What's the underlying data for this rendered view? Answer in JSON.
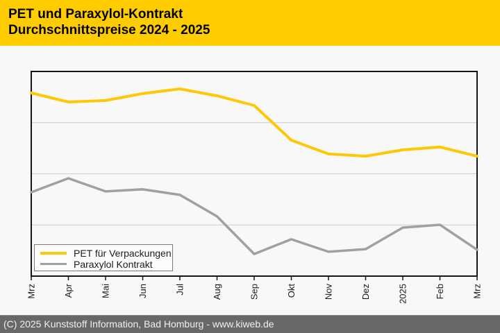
{
  "header": {
    "title_line1": "PET und Paraxylol-Kontrakt",
    "title_line2": "Durchschnittspreise 2024 - 2025",
    "background_color": "#ffcc00"
  },
  "chart_data": {
    "type": "line",
    "title": "PET und Paraxylol-Kontrakt Durchschnittspreise 2024 - 2025",
    "xlabel": "",
    "ylabel": "",
    "categories": [
      "Mrz",
      "Apr",
      "Mai",
      "Jun",
      "Jul",
      "Aug",
      "Sep",
      "Okt",
      "Nov",
      "Dez",
      "2025",
      "Feb",
      "Mrz"
    ],
    "series": [
      {
        "name": "PET für Verpackungen",
        "color": "#ffc806",
        "line_width": 4,
        "values": [
          89.5,
          85.1,
          85.8,
          89.2,
          91.5,
          88.1,
          83.4,
          66.4,
          59.7,
          58.6,
          61.7,
          63.1,
          58.6
        ]
      },
      {
        "name": "Paraxylol Kontrakt",
        "color": "#a0a0a0",
        "line_width": 3.5,
        "values": [
          41.0,
          47.8,
          41.4,
          42.4,
          39.7,
          29.2,
          10.8,
          18.0,
          11.9,
          13.2,
          23.7,
          25.1,
          12.9
        ]
      }
    ],
    "value_scale": "percent of plot height (no y-axis tick labels visible in chart)",
    "ylim": [
      0,
      100
    ],
    "grid": "horizontal gridlines at 25%, 50%, 75%",
    "grid_color": "#cccccc",
    "plot_border_color": "#141414",
    "legend_position": "inside bottom-left",
    "x_tick_label_rotation": -90
  },
  "legend": {
    "items": [
      "PET für Verpackungen",
      "Paraxylol Kontrakt"
    ]
  },
  "footer": {
    "text": "(C) 2025 Kunststoff Information, Bad Homburg - www.kiweb.de"
  }
}
